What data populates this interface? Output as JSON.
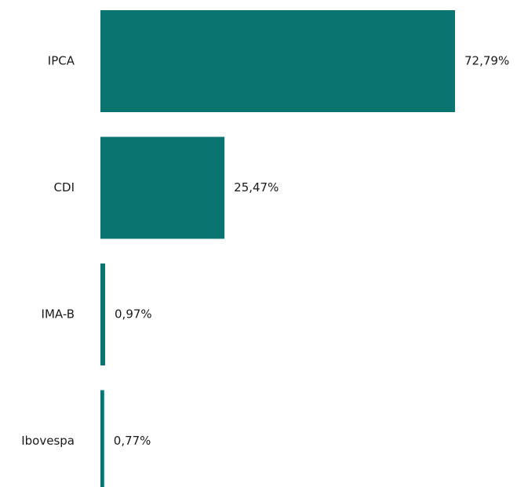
{
  "chart_data": {
    "type": "bar",
    "orientation": "horizontal",
    "categories": [
      "IPCA",
      "CDI",
      "IMA-B",
      "Ibovespa"
    ],
    "values": [
      72.79,
      25.47,
      0.97,
      0.77
    ],
    "value_labels": [
      "72,79%",
      "25,47%",
      "0,97%",
      "0,77%"
    ],
    "color": "#0a7570"
  }
}
